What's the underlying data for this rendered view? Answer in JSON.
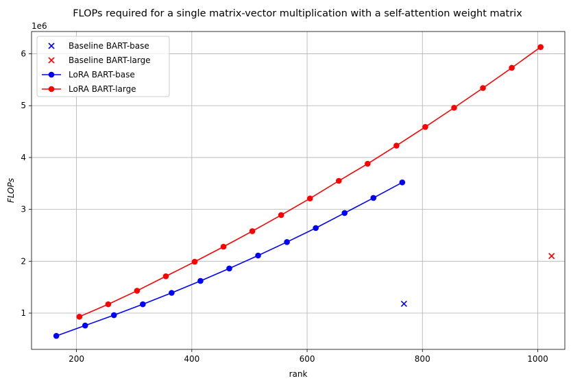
{
  "chart_data": {
    "type": "line",
    "title": "FLOPs required for a single matrix-vector multiplication with a self-attention weight matrix",
    "xlabel": "rank",
    "ylabel": "FLOPs",
    "y_offset_text": "1e6",
    "xlim": [
      122,
      1047
    ],
    "ylim": [
      0.3,
      6.43
    ],
    "y_scale_factor": 1000000,
    "x_ticks": [
      200,
      400,
      600,
      800,
      1000
    ],
    "y_ticks": [
      1,
      2,
      3,
      4,
      5,
      6
    ],
    "x_tick_labels": [
      "200",
      "400",
      "600",
      "800",
      "1000"
    ],
    "y_tick_labels": [
      "1",
      "2",
      "3",
      "4",
      "5",
      "6"
    ],
    "grid": true,
    "legend_position": "upper-left",
    "series": [
      {
        "name": "Baseline BART-base",
        "kind": "scatter",
        "marker": "x",
        "color": "#0000ff",
        "x": [
          768
        ],
        "y": [
          1.18
        ]
      },
      {
        "name": "Baseline BART-large",
        "kind": "scatter",
        "marker": "x",
        "color": "#ff0000",
        "x": [
          1024
        ],
        "y": [
          2.1
        ]
      },
      {
        "name": "LoRA BART-base",
        "kind": "line",
        "marker": "o",
        "color": "#0000ff",
        "x": [
          165,
          215,
          265,
          315,
          365,
          415,
          465,
          515,
          565,
          615,
          665,
          715,
          765
        ],
        "y": [
          0.56,
          0.76,
          0.96,
          1.17,
          1.39,
          1.62,
          1.86,
          2.11,
          2.37,
          2.64,
          2.93,
          3.22,
          3.52
        ]
      },
      {
        "name": "LoRA BART-large",
        "kind": "line",
        "marker": "o",
        "color": "#ff0000",
        "x": [
          205,
          255,
          305,
          355,
          405,
          455,
          505,
          555,
          605,
          655,
          705,
          755,
          805,
          855,
          905,
          955,
          1005
        ],
        "y": [
          0.93,
          1.17,
          1.43,
          1.71,
          1.99,
          2.28,
          2.58,
          2.89,
          3.21,
          3.55,
          3.88,
          4.23,
          4.59,
          4.96,
          5.34,
          5.73,
          6.13
        ]
      }
    ]
  }
}
